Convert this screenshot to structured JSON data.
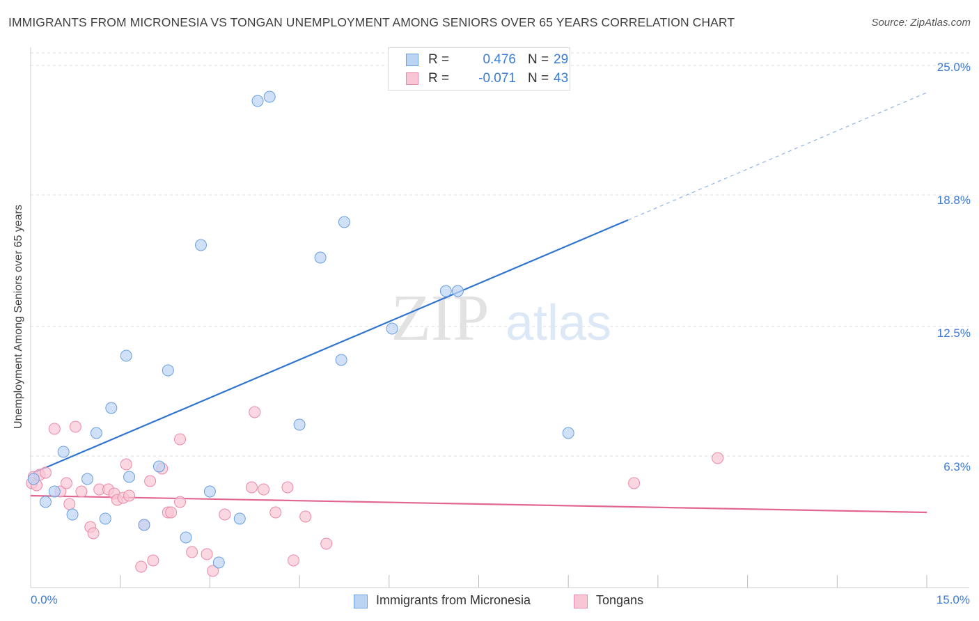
{
  "header": {
    "title": "IMMIGRANTS FROM MICRONESIA VS TONGAN UNEMPLOYMENT AMONG SENIORS OVER 65 YEARS CORRELATION CHART",
    "source": "Source: ZipAtlas.com"
  },
  "watermark": {
    "zip": "ZIP",
    "atlas": "atlas"
  },
  "legend": {
    "rows": [
      {
        "r_label": "R =",
        "r_value": "0.476",
        "n_label": "N =",
        "n_value": "29",
        "fill": "#bcd4f4",
        "stroke": "#6a9fe0"
      },
      {
        "r_label": "R =",
        "r_value": "-0.071",
        "n_label": "N =",
        "n_value": "43",
        "fill": "#f9c6d6",
        "stroke": "#e98aa8"
      }
    ]
  },
  "bottom_legend": {
    "series1": "Immigrants from Micronesia",
    "series2": "Tongans"
  },
  "axis_labels": {
    "y": "Unemployment Among Seniors over 65 years",
    "x_min": "0.0%",
    "x_max": "15.0%",
    "y_ticks": [
      "25.0%",
      "18.8%",
      "12.5%",
      "6.3%"
    ]
  },
  "chart_data": {
    "type": "scatter",
    "title": "IMMIGRANTS FROM MICRONESIA VS TONGAN UNEMPLOYMENT AMONG SENIORS OVER 65 YEARS CORRELATION CHART",
    "xlabel": "",
    "ylabel": "Unemployment Among Seniors over 65 years",
    "xlim": [
      0,
      15
    ],
    "ylim": [
      0,
      25.6
    ],
    "y_ticks": [
      6.3,
      12.5,
      18.8,
      25.0
    ],
    "x_gridlines": [
      1.5,
      3.0,
      4.5,
      6.0,
      7.5,
      9.0,
      10.5,
      12.0,
      13.5
    ],
    "series": [
      {
        "name": "Immigrants from Micronesia",
        "color": "#6a9fe0",
        "fill": "#bcd4f4",
        "r": 0.476,
        "n": 29,
        "points": [
          [
            0.05,
            5.2
          ],
          [
            0.25,
            4.1
          ],
          [
            0.4,
            4.6
          ],
          [
            0.55,
            6.5
          ],
          [
            0.7,
            3.5
          ],
          [
            0.95,
            5.2
          ],
          [
            1.1,
            7.4
          ],
          [
            1.25,
            3.3
          ],
          [
            1.35,
            8.6
          ],
          [
            1.6,
            11.1
          ],
          [
            1.65,
            5.3
          ],
          [
            1.9,
            3.0
          ],
          [
            2.15,
            5.8
          ],
          [
            2.3,
            10.4
          ],
          [
            2.6,
            2.4
          ],
          [
            2.85,
            16.4
          ],
          [
            3.0,
            4.6
          ],
          [
            3.15,
            1.2
          ],
          [
            3.5,
            3.3
          ],
          [
            3.8,
            23.3
          ],
          [
            4.0,
            23.5
          ],
          [
            4.5,
            7.8
          ],
          [
            4.85,
            15.8
          ],
          [
            5.2,
            10.9
          ],
          [
            5.25,
            17.5
          ],
          [
            6.05,
            12.4
          ],
          [
            6.95,
            14.2
          ],
          [
            7.15,
            14.2
          ],
          [
            9.0,
            7.4
          ]
        ],
        "trend": {
          "x0": 0.05,
          "y0": 5.5,
          "x1": 10.0,
          "y1": 17.6,
          "dash_to_x": 15.0,
          "dash_to_y": 23.7
        }
      },
      {
        "name": "Tongans",
        "color": "#e98aa8",
        "fill": "#f9c6d6",
        "r": -0.071,
        "n": 43,
        "points": [
          [
            0.05,
            5.3
          ],
          [
            0.15,
            5.4
          ],
          [
            0.25,
            5.5
          ],
          [
            0.4,
            7.6
          ],
          [
            0.5,
            4.6
          ],
          [
            0.6,
            5.0
          ],
          [
            0.65,
            4.0
          ],
          [
            0.75,
            7.7
          ],
          [
            0.85,
            4.6
          ],
          [
            1.0,
            2.9
          ],
          [
            1.05,
            2.6
          ],
          [
            1.15,
            4.7
          ],
          [
            1.3,
            4.7
          ],
          [
            1.4,
            4.5
          ],
          [
            1.45,
            4.2
          ],
          [
            1.55,
            4.3
          ],
          [
            1.6,
            5.9
          ],
          [
            1.65,
            4.4
          ],
          [
            1.85,
            1.0
          ],
          [
            1.9,
            3.0
          ],
          [
            2.0,
            5.1
          ],
          [
            2.05,
            1.3
          ],
          [
            2.2,
            5.7
          ],
          [
            2.3,
            3.6
          ],
          [
            2.35,
            3.6
          ],
          [
            2.5,
            4.1
          ],
          [
            2.5,
            7.1
          ],
          [
            2.7,
            1.7
          ],
          [
            2.95,
            1.6
          ],
          [
            3.05,
            0.8
          ],
          [
            3.25,
            3.5
          ],
          [
            3.7,
            4.8
          ],
          [
            3.75,
            8.4
          ],
          [
            3.9,
            4.7
          ],
          [
            4.1,
            3.6
          ],
          [
            4.3,
            4.8
          ],
          [
            4.4,
            1.3
          ],
          [
            4.6,
            3.4
          ],
          [
            4.95,
            2.1
          ],
          [
            10.1,
            5.0
          ],
          [
            11.5,
            6.2
          ],
          [
            0.02,
            5.0
          ],
          [
            0.1,
            4.9
          ]
        ],
        "trend": {
          "x0": 0.0,
          "y0": 4.4,
          "x1": 15.0,
          "y1": 3.6
        }
      }
    ]
  }
}
